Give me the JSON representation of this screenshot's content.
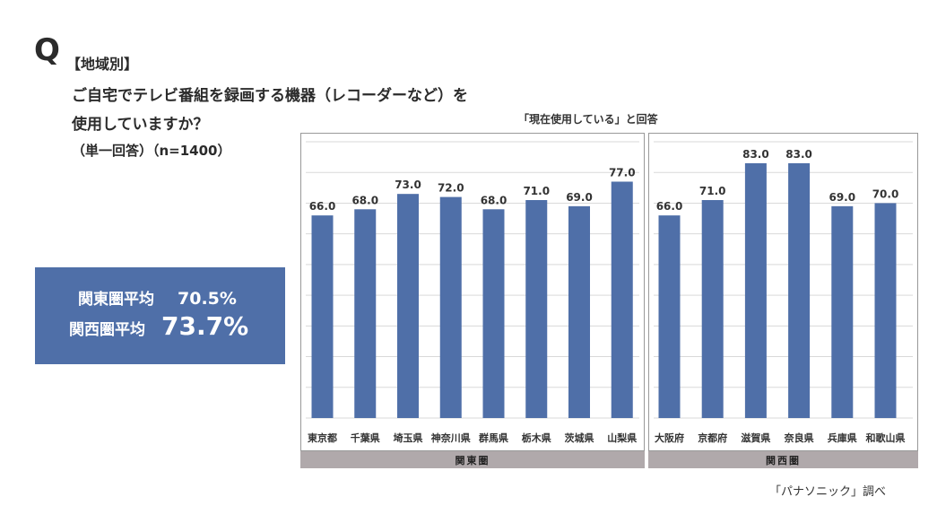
{
  "question": {
    "mark": "Q",
    "category": "【地域別】",
    "line1": "ご自宅でテレビ番組を録画する機器（レコーダーなど）を",
    "line2": "使用していますか？",
    "sub": "（単一回答）（n=1400）"
  },
  "averages": {
    "kanto_label": "関東圏平均",
    "kanto_value": "70.5%",
    "kansai_label": "関西圏平均",
    "kansai_value": "73.7%"
  },
  "source": "「パナソニック」調べ",
  "colors": {
    "bar": "#4f6fa8",
    "group_band": "#b0a9ab",
    "avg_box": "#4f6fa8",
    "grid": "#d9d9d9",
    "panel_border": "#999999"
  },
  "chart_data": [
    {
      "type": "bar",
      "title": "「現在使用している」と回答",
      "group": "関東圏",
      "categories": [
        "東京都",
        "千葉県",
        "埼玉県",
        "神奈川県",
        "群馬県",
        "栃木県",
        "茨城県",
        "山梨県"
      ],
      "values": [
        66.0,
        68.0,
        73.0,
        72.0,
        68.0,
        71.0,
        69.0,
        77.0
      ],
      "ylim": [
        0,
        90
      ],
      "grid": true
    },
    {
      "type": "bar",
      "group": "関西圏",
      "categories": [
        "大阪府",
        "京都府",
        "滋賀県",
        "奈良県",
        "兵庫県",
        "和歌山県"
      ],
      "values": [
        66.0,
        71.0,
        83.0,
        83.0,
        69.0,
        70.0
      ],
      "ylim": [
        0,
        90
      ],
      "grid": true
    }
  ]
}
